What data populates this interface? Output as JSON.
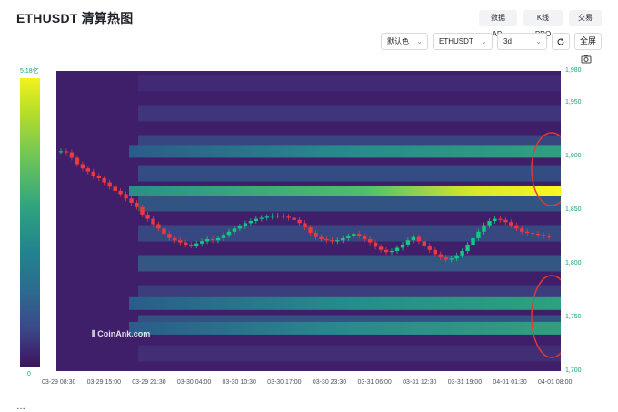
{
  "header": {
    "title": "ETHUSDT 清算热图"
  },
  "top_buttons": [
    {
      "label": "数据API"
    },
    {
      "label": "K线 PRO"
    },
    {
      "label": "交易"
    }
  ],
  "controls": {
    "color_scheme": "默认色",
    "symbol": "ETHUSDT",
    "range": "3d",
    "fullscreen_label": "全屏",
    "refresh_icon": "refresh-icon",
    "dropdown_icon": "chevron-down-icon",
    "camera_icon": "camera-icon"
  },
  "color_scale": {
    "max_label": "5.18亿",
    "min_label": "0"
  },
  "watermark": "CoinAnk.com",
  "bottom_text": "…",
  "chart_data": {
    "type": "heatmap",
    "x_ticks": [
      "03-29 08:30",
      "03-29 15:00",
      "03-29 21:30",
      "03-30 04:00",
      "03-30 10:30",
      "03-30 17:00",
      "03-30 23:30",
      "03-31 06:00",
      "03-31 12:30",
      "03-31 19:00",
      "04-01 01:30",
      "04-01 08:00"
    ],
    "y_ticks": [
      "1,980",
      "1,950",
      "1,900",
      "1,850",
      "1,800",
      "1,750",
      "1,700"
    ],
    "ylim": [
      1700,
      1980
    ],
    "price_close": [
      1905,
      1904,
      1899,
      1893,
      1889,
      1886,
      1882,
      1880,
      1876,
      1872,
      1868,
      1865,
      1861,
      1857,
      1853,
      1846,
      1842,
      1837,
      1833,
      1828,
      1824,
      1822,
      1820,
      1818,
      1817,
      1819,
      1821,
      1823,
      1822,
      1824,
      1827,
      1830,
      1833,
      1835,
      1838,
      1840,
      1842,
      1843,
      1844,
      1845,
      1845,
      1844,
      1843,
      1841,
      1838,
      1834,
      1829,
      1825,
      1823,
      1822,
      1821,
      1822,
      1824,
      1826,
      1828,
      1826,
      1823,
      1820,
      1816,
      1813,
      1811,
      1812,
      1815,
      1818,
      1822,
      1825,
      1821,
      1817,
      1813,
      1809,
      1806,
      1804,
      1805,
      1808,
      1812,
      1818,
      1824,
      1830,
      1836,
      1840,
      1842,
      1841,
      1839,
      1836,
      1833,
      1830,
      1829,
      1828,
      1827,
      1826,
      1825
    ],
    "high_liquidation_levels": [
      {
        "price": 1905,
        "intensity": "medium"
      },
      {
        "price": 1868,
        "intensity": "very-high"
      },
      {
        "price": 1763,
        "intensity": "medium"
      },
      {
        "price": 1740,
        "intensity": "medium"
      }
    ],
    "annotations": [
      "red circle around upper liquidation cluster",
      "red circle around lower liquidation cluster"
    ]
  }
}
